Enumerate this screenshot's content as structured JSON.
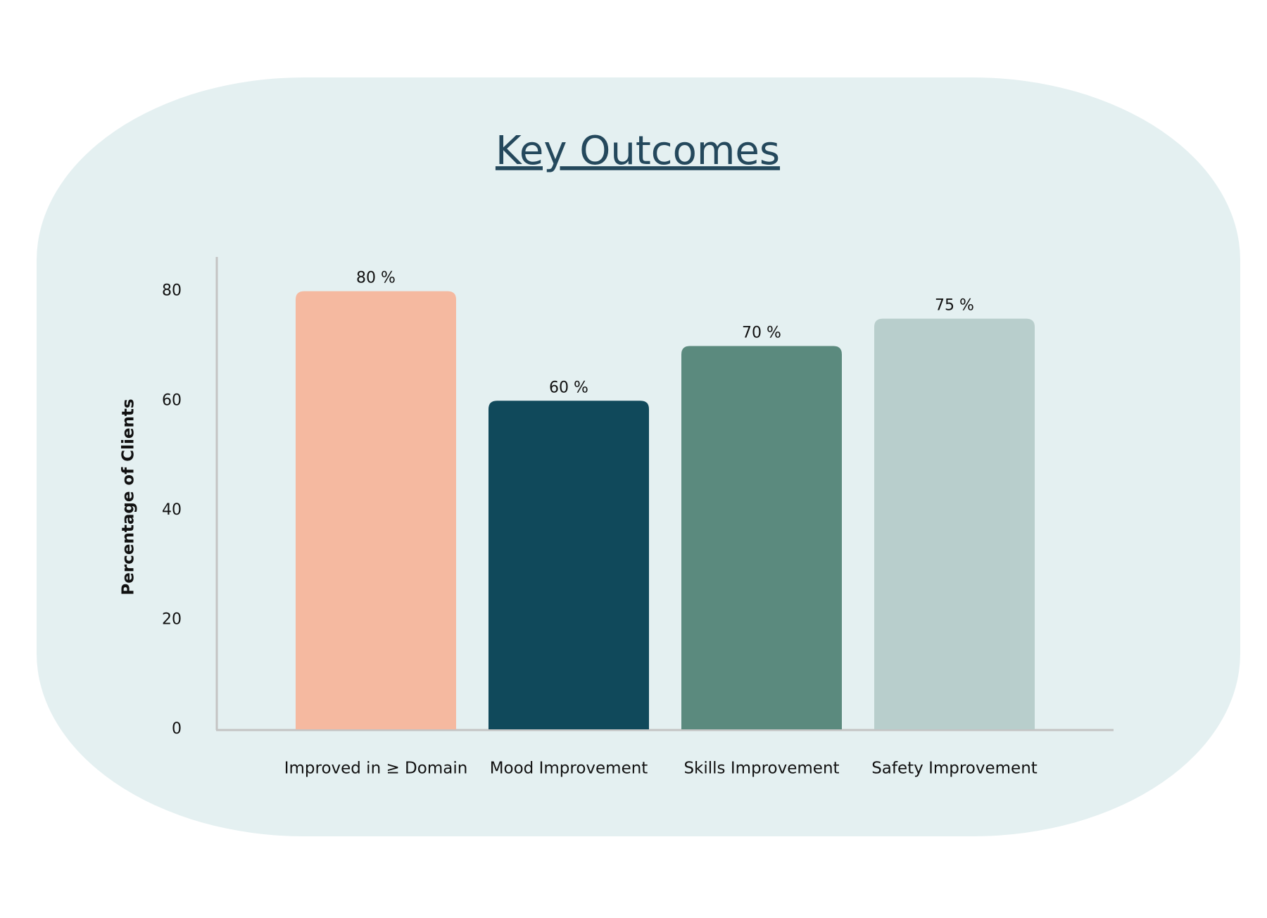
{
  "chart_data": {
    "type": "bar",
    "title": "Key Outcomes",
    "y_label": "Percentage of Clients",
    "categories": [
      "Improved in ≥ Domain",
      "Mood Improvement",
      "Skills Improvement",
      "Safety Improvement"
    ],
    "values": [
      80,
      60,
      70,
      75
    ],
    "value_labels": [
      "80 %",
      "60 %",
      "70 %",
      "75 %"
    ],
    "colors": [
      "#f5b9a0",
      "#10495b",
      "#5b8a7e",
      "#b8cecc"
    ],
    "ylim": [
      0,
      86
    ],
    "yticks": [
      0,
      20,
      40,
      60,
      80
    ],
    "grid": false
  }
}
